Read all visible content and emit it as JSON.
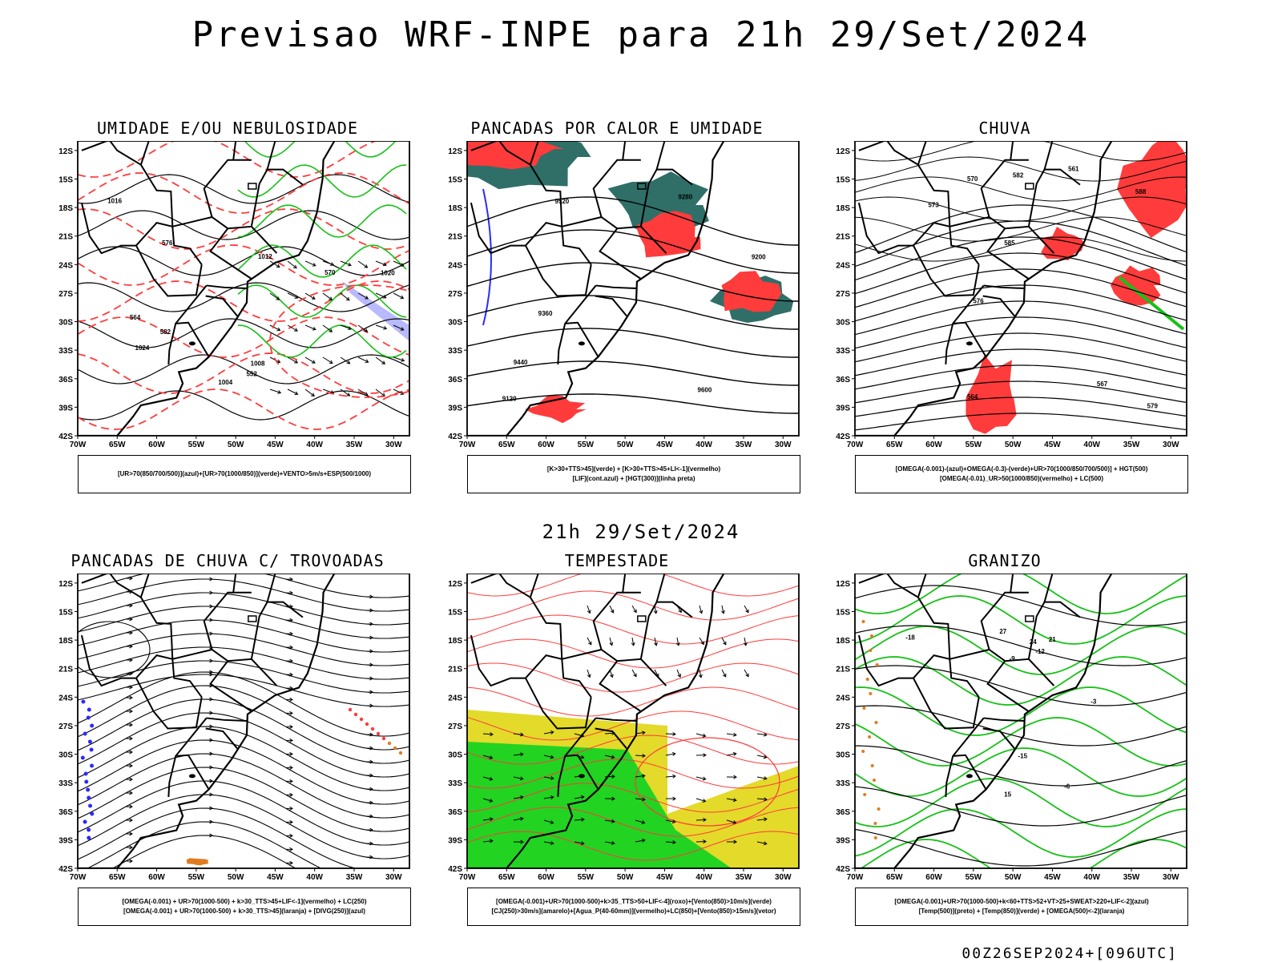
{
  "header": {
    "title": "Previsao WRF-INPE  para 21h 29/Set/2024"
  },
  "mid_title": "21h 29/Set/2024",
  "footer": "00Z26SEP2024+[096UTC]",
  "axes": {
    "lat_labels": [
      "12S",
      "15S",
      "18S",
      "21S",
      "24S",
      "27S",
      "30S",
      "33S",
      "36S",
      "39S",
      "42S"
    ],
    "lon_labels": [
      "70W",
      "65W",
      "60W",
      "55W",
      "50W",
      "45W",
      "40W",
      "35W",
      "30W"
    ]
  },
  "colors": {
    "red": "#ff3b3b",
    "green": "#16c116",
    "blue": "#2a2aff",
    "teal": "#2f6f68",
    "yellow": "#e3da2a",
    "orange": "#e07b20",
    "lightgreen": "#22d322",
    "lavender": "#b9b9ff"
  },
  "chart_data": [
    {
      "type": "contour",
      "title": "UMIDADE E/OU NEBULOSIDADE",
      "legend": [
        "[UR>70(850/700/500)](azul)+[UR>70(1000/850)](verde)+VENTO>5m/s+ESP(500/1000)"
      ],
      "xlim": [
        -70,
        -28
      ],
      "ylim": [
        -42,
        -11
      ],
      "contour_labels": [
        "1004",
        "1008",
        "1012",
        "1016",
        "1020",
        "1024",
        "552",
        "564",
        "570",
        "576",
        "582"
      ],
      "layers": [
        "pressao (preto)",
        "espessura (vermelho tracejado)",
        "UR 1000/850 (verde)",
        "UR 850-500 (azul)",
        "vento (vetores)"
      ]
    },
    {
      "type": "contour",
      "title": "PANCADAS POR CALOR E UMIDADE",
      "legend": [
        "[K>30+TTS>45](verde) + [K>30+TTS>45+LI<-1](vermelho)",
        "[LIF](cont.azul) + [HGT(300)](linha preta)"
      ],
      "xlim": [
        -70,
        -28
      ],
      "ylim": [
        -42,
        -11
      ],
      "contour_labels": [
        "9120",
        "9200",
        "9280",
        "9360",
        "9440",
        "9520",
        "9600"
      ],
      "layers": [
        "geopotencial 300hPa (preto)",
        "K/TTS (verde escuro)",
        "K/TTS/LI (vermelho)",
        "LIF (azul)"
      ]
    },
    {
      "type": "contour",
      "title": "CHUVA",
      "legend": [
        "[OMEGA(-0.001)-(azul)+OMEGA(-0.3)-(verde)+UR>70(1000/850/700/500)] + HGT(500)",
        "[OMEGA(-0.01)_UR>50(1000/850)(vermelho) + LC(500)"
      ],
      "xlim": [
        -70,
        -28
      ],
      "ylim": [
        -42,
        -11
      ],
      "contour_labels": [
        "561",
        "564",
        "567",
        "570",
        "573",
        "576",
        "579",
        "582",
        "585",
        "588"
      ],
      "layers": [
        "geopotencial 500hPa (preto)",
        "omega/UR (vermelho)",
        "omega (azul/verde)"
      ]
    },
    {
      "type": "streamline",
      "title": "PANCADAS DE CHUVA C/ TROVOADAS",
      "legend": [
        "[OMEGA(-0.001) + UR>70(1000-500) + k>30_TTS>45+LIF<-1](vermelho) + LC(250)",
        "[OMEGA(-0.001) + UR>70(1000-500) + k>30_TTS>45](laranja) + [DIVG(250)](azul)"
      ],
      "xlim": [
        -70,
        -28
      ],
      "ylim": [
        -42,
        -11
      ],
      "layers": [
        "linhas de corrente 250hPa (preto)",
        "conveccao (laranja/vermelho)",
        "divergencia (azul)"
      ]
    },
    {
      "type": "vector",
      "title": "TEMPESTADE",
      "legend": [
        "[OMEGA(-0.001)+UR>70(1000-500)+k>35_TTS>50+LIF<-4](roxo)+[Vento(850)>10m/s](verde)",
        "[CJ(250)>30m/s](amarelo)+[Agua_P(40-60mm)](vermelho)+LC(850)+[Vento(850)>15m/s](vetor)"
      ],
      "xlim": [
        -70,
        -28
      ],
      "ylim": [
        -42,
        -11
      ],
      "layers": [
        "corrente de jato 250hPa (amarelo)",
        "vento 850hPa >10m/s (verde)",
        "agua precipitavel (vermelho)",
        "vetores 850hPa"
      ]
    },
    {
      "type": "contour",
      "title": "GRANIZO",
      "legend": [
        "[OMEGA(-0.001)+UR>70(1000-500)+k<60+TTS>52+VT>25+SWEAT>220+LIF<-2](azul)",
        "[Temp(500)](preto) + [Temp(850)](verde) + [OMEGA(500)<-2](laranja)"
      ],
      "xlim": [
        -70,
        -28
      ],
      "ylim": [
        -42,
        -11
      ],
      "contour_labels": [
        "-12",
        "-15",
        "-18",
        "-3",
        "-9",
        "-6",
        "21",
        "24",
        "27",
        "15"
      ],
      "layers": [
        "temperatura 500hPa (preto)",
        "temperatura 850hPa (verde)",
        "omega 500hPa (laranja)"
      ]
    }
  ]
}
